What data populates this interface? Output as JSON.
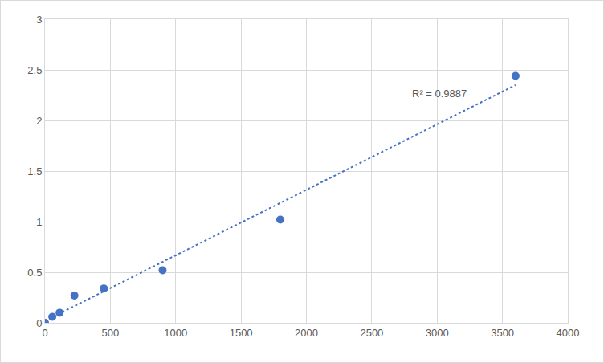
{
  "chart_data": {
    "type": "scatter",
    "series": [
      {
        "type": "scatter",
        "x": [
          0,
          56,
          112,
          225,
          450,
          900,
          1800,
          3600
        ],
        "values": [
          0,
          0.06,
          0.1,
          0.27,
          0.34,
          0.52,
          1.02,
          2.44
        ],
        "color": "#4472c4",
        "marker": "circle"
      },
      {
        "type": "line",
        "x": [
          0,
          3600
        ],
        "values": [
          0.02,
          2.35
        ],
        "color": "#4472c4",
        "line_style": "dot"
      }
    ],
    "annotations": [
      {
        "text": "R² = 0.9887"
      }
    ],
    "xlim": [
      0,
      4000
    ],
    "xticks": [
      0,
      500,
      1000,
      1500,
      2000,
      2500,
      3000,
      3500,
      4000
    ],
    "ylim": [
      0,
      3
    ],
    "yticks": [
      0,
      0.5,
      1,
      1.5,
      2,
      2.5,
      3
    ],
    "grid": true
  }
}
